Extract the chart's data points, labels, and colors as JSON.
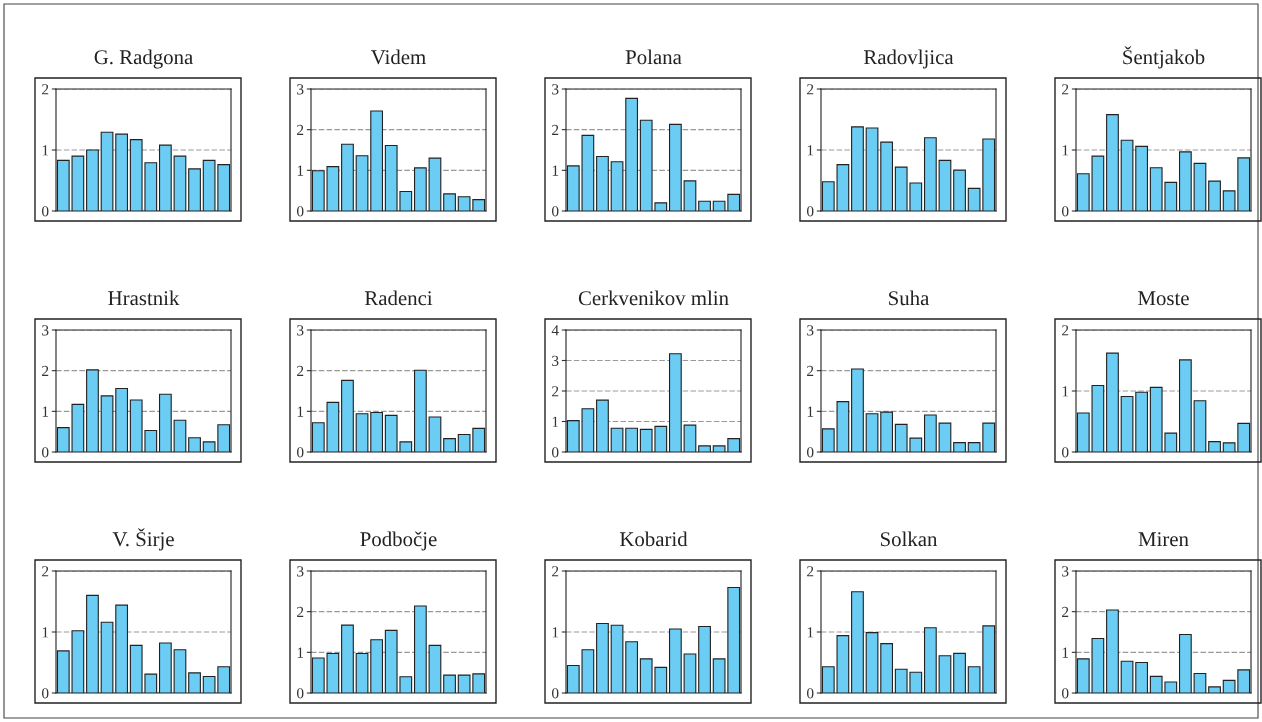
{
  "chart_data": [
    {
      "type": "bar",
      "title": "G. Radgona",
      "categories": [
        null,
        null,
        null,
        null,
        null,
        null,
        null,
        null,
        null,
        null,
        null,
        null
      ],
      "values": [
        0.83,
        0.9,
        1.0,
        1.29,
        1.26,
        1.17,
        0.79,
        1.08,
        0.9,
        0.69,
        0.83,
        0.76
      ],
      "color": "#6bcdf3",
      "ylim": [
        0,
        2
      ],
      "yticks": [
        0,
        1,
        2
      ],
      "grid": "y",
      "tick_labels": "y"
    },
    {
      "type": "bar",
      "title": "Videm",
      "categories": [
        null,
        null,
        null,
        null,
        null,
        null,
        null,
        null,
        null,
        null,
        null,
        null
      ],
      "values": [
        0.99,
        1.09,
        1.64,
        1.36,
        2.46,
        1.61,
        0.48,
        1.06,
        1.3,
        0.42,
        0.35,
        0.28
      ],
      "color": "#6bcdf3",
      "ylim": [
        0,
        3
      ],
      "yticks": [
        0,
        1,
        2,
        3
      ],
      "grid": "y",
      "tick_labels": "y"
    },
    {
      "type": "bar",
      "title": "Polana",
      "categories": [
        null,
        null,
        null,
        null,
        null,
        null,
        null,
        null,
        null,
        null,
        null,
        null
      ],
      "values": [
        1.11,
        1.86,
        1.34,
        1.21,
        2.77,
        2.23,
        0.2,
        2.13,
        0.74,
        0.24,
        0.24,
        0.41
      ],
      "color": "#6bcdf3",
      "ylim": [
        0,
        3
      ],
      "yticks": [
        0,
        1,
        2,
        3
      ],
      "grid": "y",
      "tick_labels": "y"
    },
    {
      "type": "bar",
      "title": "Radovljica",
      "categories": [
        null,
        null,
        null,
        null,
        null,
        null,
        null,
        null,
        null,
        null,
        null,
        null
      ],
      "values": [
        0.48,
        0.76,
        1.38,
        1.36,
        1.13,
        0.72,
        0.46,
        1.2,
        0.83,
        0.67,
        0.37,
        1.18
      ],
      "color": "#6bcdf3",
      "ylim": [
        0,
        2
      ],
      "yticks": [
        0,
        1,
        2
      ],
      "grid": "y",
      "tick_labels": "y"
    },
    {
      "type": "bar",
      "title": "Šentjakob",
      "categories": [
        null,
        null,
        null,
        null,
        null,
        null,
        null,
        null,
        null,
        null,
        null,
        null
      ],
      "values": [
        0.61,
        0.9,
        1.58,
        1.16,
        1.06,
        0.71,
        0.47,
        0.97,
        0.78,
        0.49,
        0.33,
        0.87
      ],
      "color": "#6bcdf3",
      "ylim": [
        0,
        2
      ],
      "yticks": [
        0,
        1,
        2
      ],
      "grid": "y",
      "tick_labels": "y"
    },
    {
      "type": "bar",
      "title": "Hrastnik",
      "categories": [
        null,
        null,
        null,
        null,
        null,
        null,
        null,
        null,
        null,
        null,
        null,
        null
      ],
      "values": [
        0.6,
        1.17,
        2.02,
        1.38,
        1.56,
        1.28,
        0.53,
        1.42,
        0.78,
        0.35,
        0.25,
        0.67
      ],
      "color": "#6bcdf3",
      "ylim": [
        0,
        3
      ],
      "yticks": [
        0,
        1,
        2,
        3
      ],
      "grid": "y",
      "tick_labels": "y"
    },
    {
      "type": "bar",
      "title": "Radenci",
      "categories": [
        null,
        null,
        null,
        null,
        null,
        null,
        null,
        null,
        null,
        null,
        null,
        null
      ],
      "values": [
        0.72,
        1.22,
        1.76,
        0.94,
        0.97,
        0.9,
        0.25,
        2.01,
        0.86,
        0.33,
        0.43,
        0.58
      ],
      "color": "#6bcdf3",
      "ylim": [
        0,
        3
      ],
      "yticks": [
        0,
        1,
        2,
        3
      ],
      "grid": "y",
      "tick_labels": "y"
    },
    {
      "type": "bar",
      "title": "Cerkvenikov mlin",
      "categories": [
        null,
        null,
        null,
        null,
        null,
        null,
        null,
        null,
        null,
        null,
        null,
        null
      ],
      "values": [
        1.03,
        1.42,
        1.7,
        0.78,
        0.78,
        0.74,
        0.84,
        3.22,
        0.88,
        0.2,
        0.2,
        0.44
      ],
      "color": "#6bcdf3",
      "ylim": [
        0,
        4
      ],
      "yticks": [
        0,
        1,
        2,
        3,
        4
      ],
      "grid": "y",
      "tick_labels": "y"
    },
    {
      "type": "bar",
      "title": "Suha",
      "categories": [
        null,
        null,
        null,
        null,
        null,
        null,
        null,
        null,
        null,
        null,
        null,
        null
      ],
      "values": [
        0.57,
        1.24,
        2.04,
        0.94,
        0.98,
        0.68,
        0.34,
        0.91,
        0.71,
        0.23,
        0.23,
        0.71
      ],
      "color": "#6bcdf3",
      "ylim": [
        0,
        3
      ],
      "yticks": [
        0,
        1,
        2,
        3
      ],
      "grid": "y",
      "tick_labels": "y"
    },
    {
      "type": "bar",
      "title": "Moste",
      "categories": [
        null,
        null,
        null,
        null,
        null,
        null,
        null,
        null,
        null,
        null,
        null,
        null
      ],
      "values": [
        0.64,
        1.09,
        1.62,
        0.91,
        0.98,
        1.06,
        0.31,
        1.51,
        0.84,
        0.17,
        0.15,
        0.47
      ],
      "color": "#6bcdf3",
      "ylim": [
        0,
        2
      ],
      "yticks": [
        0,
        1,
        2
      ],
      "grid": "y",
      "tick_labels": "y"
    },
    {
      "type": "bar",
      "title": "V. Širje",
      "categories": [
        null,
        null,
        null,
        null,
        null,
        null,
        null,
        null,
        null,
        null,
        null,
        null
      ],
      "values": [
        0.69,
        1.02,
        1.6,
        1.16,
        1.44,
        0.78,
        0.31,
        0.82,
        0.71,
        0.33,
        0.27,
        0.43
      ],
      "color": "#6bcdf3",
      "ylim": [
        0,
        2
      ],
      "yticks": [
        0,
        1,
        2
      ],
      "grid": "y",
      "tick_labels": "y"
    },
    {
      "type": "bar",
      "title": "Podbočje",
      "categories": [
        null,
        null,
        null,
        null,
        null,
        null,
        null,
        null,
        null,
        null,
        null,
        null
      ],
      "values": [
        0.86,
        0.97,
        1.67,
        0.97,
        1.31,
        1.54,
        0.4,
        2.14,
        1.17,
        0.44,
        0.44,
        0.47
      ],
      "color": "#6bcdf3",
      "ylim": [
        0,
        3
      ],
      "yticks": [
        0,
        1,
        2,
        3
      ],
      "grid": "y",
      "tick_labels": "y"
    },
    {
      "type": "bar",
      "title": "Kobarid",
      "categories": [
        null,
        null,
        null,
        null,
        null,
        null,
        null,
        null,
        null,
        null,
        null,
        null
      ],
      "values": [
        0.45,
        0.71,
        1.14,
        1.11,
        0.84,
        0.56,
        0.42,
        1.05,
        0.64,
        1.09,
        0.56,
        1.73
      ],
      "color": "#6bcdf3",
      "ylim": [
        0,
        2
      ],
      "yticks": [
        0,
        1,
        2
      ],
      "grid": "y",
      "tick_labels": "y"
    },
    {
      "type": "bar",
      "title": "Solkan",
      "categories": [
        null,
        null,
        null,
        null,
        null,
        null,
        null,
        null,
        null,
        null,
        null,
        null
      ],
      "values": [
        0.43,
        0.94,
        1.66,
        0.99,
        0.81,
        0.39,
        0.34,
        1.07,
        0.61,
        0.65,
        0.43,
        1.1
      ],
      "color": "#6bcdf3",
      "ylim": [
        0,
        2
      ],
      "yticks": [
        0,
        1,
        2
      ],
      "grid": "y",
      "tick_labels": "y"
    },
    {
      "type": "bar",
      "title": "Miren",
      "categories": [
        null,
        null,
        null,
        null,
        null,
        null,
        null,
        null,
        null,
        null,
        null,
        null
      ],
      "values": [
        0.84,
        1.34,
        2.04,
        0.78,
        0.75,
        0.41,
        0.27,
        1.44,
        0.48,
        0.15,
        0.31,
        0.57
      ],
      "color": "#6bcdf3",
      "ylim": [
        0,
        3
      ],
      "yticks": [
        0,
        1,
        2,
        3
      ],
      "grid": "y",
      "tick_labels": "y"
    }
  ]
}
